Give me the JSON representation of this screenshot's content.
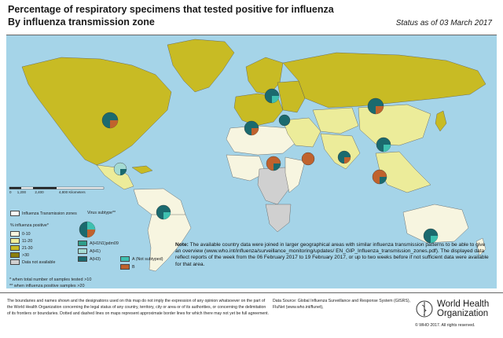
{
  "header": {
    "title_line1": "Percentage of respiratory specimens that tested positive for influenza",
    "title_line2": "By influenza transmission zone",
    "status": "Status as of 03 March 2017"
  },
  "scale": {
    "labels": [
      "0",
      "1,200",
      "2,400",
      "4,800 Kilometers"
    ]
  },
  "legend": {
    "zones_label": "Influenza Transmission zones",
    "subtype_title": "Virus subtype**",
    "percent_title": "% influenza positive*",
    "percent_items": [
      {
        "label": "0-10",
        "color": "#f7f5e0"
      },
      {
        "label": "11-20",
        "color": "#ecec9a"
      },
      {
        "label": "21-30",
        "color": "#c8bb24"
      },
      {
        "label": ">30",
        "color": "#8a7f0c"
      },
      {
        "label": "Data not available",
        "color": "#d0d0d0"
      }
    ],
    "subtype_items": [
      {
        "label": "A(H1N1)pdm09",
        "color": "#2e9d8a"
      },
      {
        "label": "A(H1)",
        "color": "#a4dbd3"
      },
      {
        "label": "A(H3)",
        "color": "#1b6a6e"
      },
      {
        "label": "A (Not subtyped)",
        "color": "#3fc0b0"
      },
      {
        "label": "B",
        "color": "#c0622d"
      }
    ]
  },
  "footnotes": {
    "line1": "*   when total number of samples tested >10",
    "line2": "**  when influenza positive samples >20"
  },
  "note": {
    "label": "Note:",
    "text": "The available country data were joined in larger geographical areas with similar influenza transmission patterns to be able to give an overview (www.who.int/influenza/surveillance_monitoring/updates/ EN_GIP_Influenza_transmission_zones.pdf). The displayed data reflect reports of the week from the 06 February 2017 to 19 February 2017, or up to two weeks before if not sufficient data were available for that area."
  },
  "footer": {
    "disclaimer": "The boundaries and names shown and the designations used on this map do not imply the expression of any opinion whatsoever on the part of the World Health Organization concerning the legal status of any country, territory, city or area or of its authorities, or concerning the delimitation of its frontiers or boundaries. Dotted and dashed lines on maps represent approximate border lines for which there may not yet be full agreement.",
    "datasource": "Data Source: Global Influenza Surveillance and Response System (GISRS), FluNet (www.who.int/flunet),",
    "who_line1": "World Health",
    "who_line2": "Organization",
    "copyright": "© WHO 2017. All rights reserved."
  },
  "colors": {
    "ocean": "#a5d4e8",
    "band_0_10": "#f7f5e0",
    "band_11_20": "#ecec9a",
    "band_21_30": "#c8bb24",
    "band_gt30": "#8a7f0c",
    "no_data": "#d0d0d0"
  }
}
